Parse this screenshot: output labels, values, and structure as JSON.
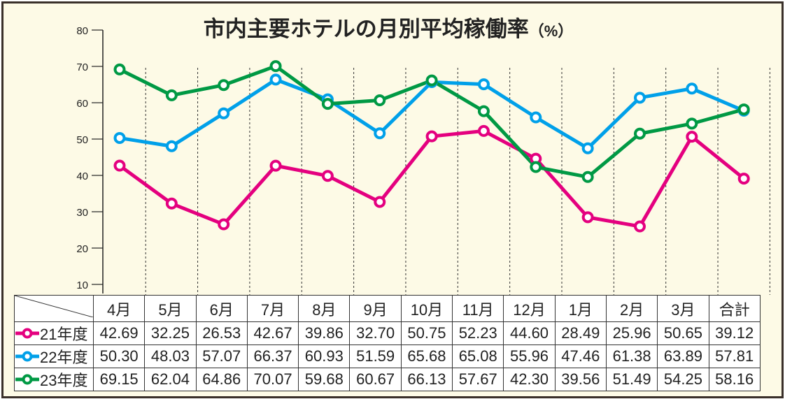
{
  "chart_data": {
    "type": "line",
    "title": "市内主要ホテルの月別平均稼働率",
    "title_unit": "（%）",
    "categories": [
      "4月",
      "5月",
      "6月",
      "7月",
      "8月",
      "9月",
      "10月",
      "11月",
      "12月",
      "1月",
      "2月",
      "3月",
      "合計"
    ],
    "ylim": [
      10,
      80
    ],
    "yticks": [
      10,
      20,
      30,
      40,
      50,
      60,
      70,
      80
    ],
    "grid": "dashed vertical",
    "legend": "table-left",
    "series": [
      {
        "name": "21年度",
        "color": "#e4007f",
        "values": [
          42.69,
          32.25,
          26.53,
          42.67,
          39.86,
          32.7,
          50.75,
          52.23,
          44.6,
          28.49,
          25.96,
          50.65,
          39.12
        ],
        "labels": [
          "42.69",
          "32.25",
          "26.53",
          "42.67",
          "39.86",
          "32.70",
          "50.75",
          "52.23",
          "44.60",
          "28.49",
          "25.96",
          "50.65",
          "39.12"
        ]
      },
      {
        "name": "22年度",
        "color": "#00a0e9",
        "values": [
          50.3,
          48.03,
          57.07,
          66.37,
          60.93,
          51.59,
          65.68,
          65.08,
          55.96,
          47.46,
          61.38,
          63.89,
          57.81
        ],
        "labels": [
          "50.30",
          "48.03",
          "57.07",
          "66.37",
          "60.93",
          "51.59",
          "65.68",
          "65.08",
          "55.96",
          "47.46",
          "61.38",
          "63.89",
          "57.81"
        ]
      },
      {
        "name": "23年度",
        "color": "#009944",
        "values": [
          69.15,
          62.04,
          64.86,
          70.07,
          59.68,
          60.67,
          66.13,
          57.67,
          42.3,
          39.56,
          51.49,
          54.25,
          58.16
        ],
        "labels": [
          "69.15",
          "62.04",
          "64.86",
          "70.07",
          "59.68",
          "60.67",
          "66.13",
          "57.67",
          "42.30",
          "39.56",
          "51.49",
          "54.25",
          "58.16"
        ]
      }
    ]
  }
}
